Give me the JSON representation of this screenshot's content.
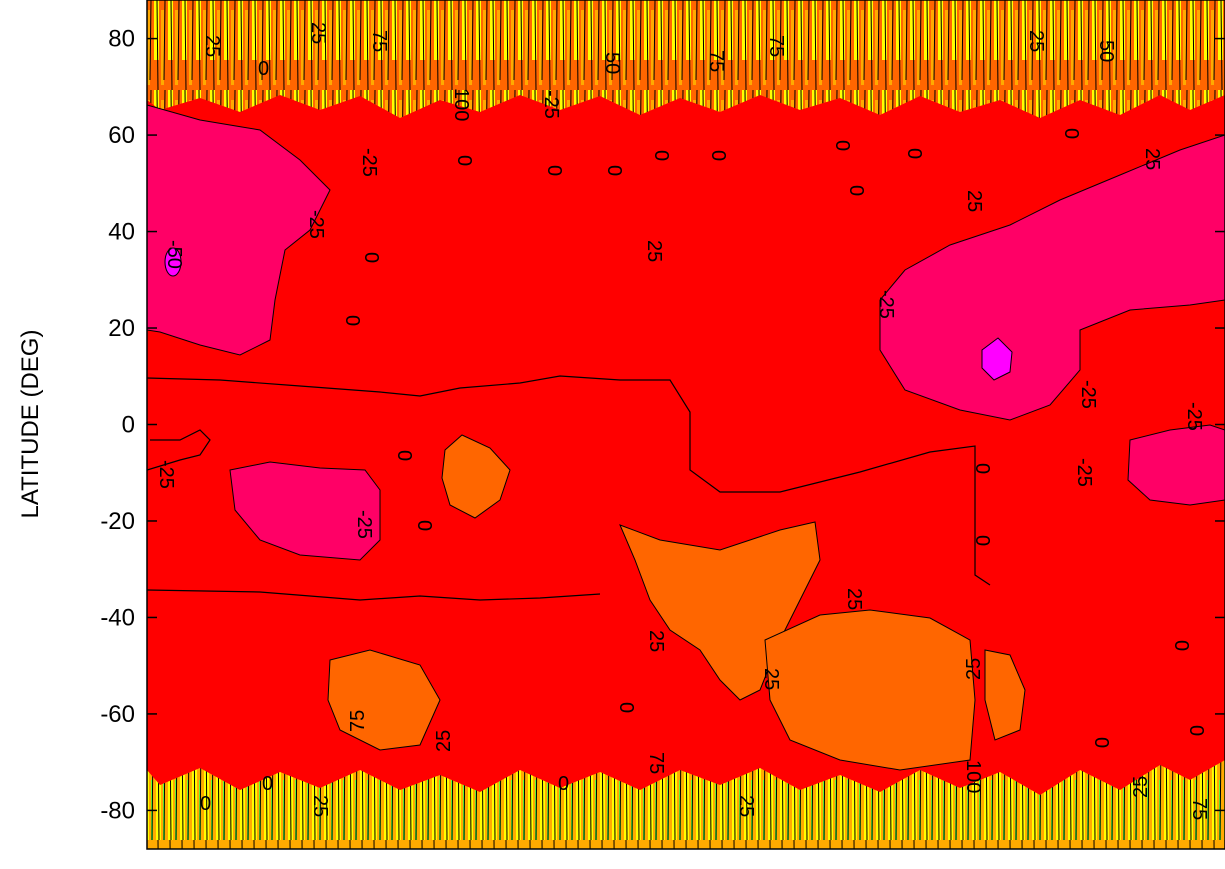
{
  "chart_data": {
    "type": "heatmap",
    "title": "",
    "xlabel": "",
    "ylabel": "LATITUDE (DEG)",
    "ylim": [
      -88,
      88
    ],
    "y_ticks": [
      80,
      60,
      40,
      20,
      0,
      -20,
      -40,
      -60,
      -80
    ],
    "y_tick_labels": [
      "80",
      "60",
      "40",
      "20",
      "0",
      "-20",
      "-40",
      "-60",
      "-80"
    ],
    "contour_levels": [
      -50,
      -25,
      0,
      25,
      50,
      75,
      100
    ],
    "contour_labels": [
      "25",
      "0",
      "75",
      "100",
      "50",
      "-25",
      "-50"
    ],
    "level_colors": {
      "below_-50": "#ff00ff",
      "-50_to_-25": "#ff0066",
      "-25_to_0": "#ff0000",
      "0_to_25": "#ff6600",
      "25_to_50": "#ffaa00",
      "50_to_75": "#ffff00",
      "75_to_100": "#66ff33",
      "above_100": "#00ffcc"
    },
    "regions": [
      {
        "level": "-50_to_-25",
        "lat_range": [
          20,
          55
        ],
        "note_position": "left"
      },
      {
        "level": "-50_to_-25",
        "lat_range": [
          10,
          55
        ],
        "note_position": "right"
      },
      {
        "level": "-50_to_-25",
        "lat_range": [
          -25,
          -8
        ],
        "note_position": "left"
      },
      {
        "level": "-50_to_-25",
        "lat_range": [
          -15,
          0
        ],
        "note_position": "right"
      },
      {
        "level": "below_-50",
        "lat_range": [
          12,
          18
        ],
        "note_position": "right"
      },
      {
        "level": "0_to_25",
        "lat_range": [
          -18,
          0
        ],
        "note_position": "center-left"
      },
      {
        "level": "0_to_25",
        "lat_range": [
          -60,
          -18
        ],
        "note_position": "center"
      },
      {
        "level": "25_to_50",
        "lat_range": [
          65,
          88
        ],
        "note_position": "top"
      },
      {
        "level": "50_to_75",
        "lat_range": [
          -88,
          -70
        ],
        "note_position": "bottom"
      }
    ],
    "grid": false,
    "legend": "none"
  },
  "colors": {
    "background": "#ffffff",
    "axis": "#000000",
    "contour_line": "#000000"
  }
}
